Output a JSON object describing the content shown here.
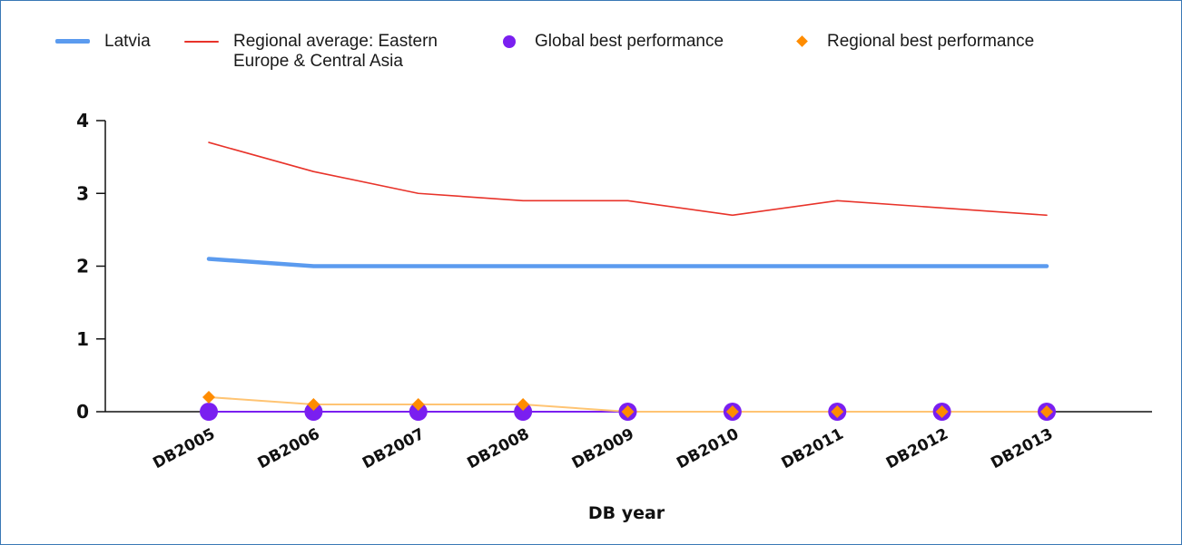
{
  "chart_data": {
    "type": "line",
    "title": "",
    "xlabel": "DB year",
    "ylabel": "",
    "ylim": [
      0,
      4
    ],
    "yticks": [
      0,
      1,
      2,
      3,
      4
    ],
    "grid": false,
    "legend_position": "top",
    "categories": [
      "DB2005",
      "DB2006",
      "DB2007",
      "DB2008",
      "DB2009",
      "DB2010",
      "DB2011",
      "DB2012",
      "DB2013"
    ],
    "series": [
      {
        "name": "Latvia",
        "kind": "line",
        "color": "#5b9bef",
        "values": [
          2.1,
          2,
          2,
          2,
          2,
          2,
          2,
          2,
          2
        ]
      },
      {
        "name": "Regional average: Eastern Europe & Central Asia",
        "name_lines": [
          "Regional average: Eastern",
          "Europe & Central Asia"
        ],
        "kind": "line",
        "color": "#e8332a",
        "values": [
          3.7,
          3.3,
          3,
          2.9,
          2.9,
          2.7,
          2.9,
          2.8,
          2.7
        ]
      },
      {
        "name": "Global best performance",
        "kind": "marker-circle",
        "color": "#7a1ff0",
        "values": [
          0,
          0,
          0,
          0,
          0,
          0,
          0,
          0,
          0
        ]
      },
      {
        "name": "Regional best performance",
        "kind": "marker-diamond",
        "color": "#ff8c00",
        "line_color": "#ffc473",
        "values": [
          0.2,
          0.1,
          0.1,
          0.1,
          0,
          0,
          0,
          0,
          0
        ]
      }
    ]
  }
}
